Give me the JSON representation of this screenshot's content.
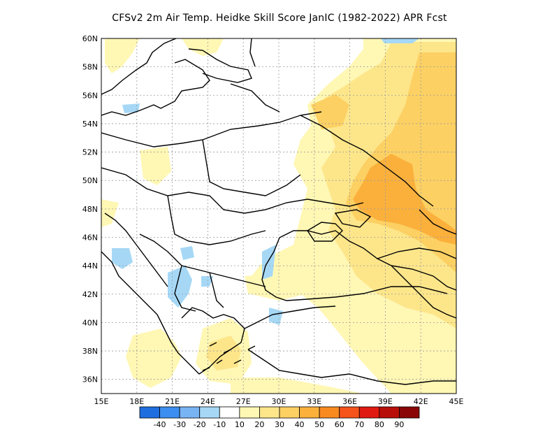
{
  "title": "CFSv2  2m Air Temp. Heidke Skill Score JanIC (1982-2022) APR Fcst",
  "map": {
    "lon_range": [
      15,
      45
    ],
    "lat_range": [
      35,
      60
    ],
    "grid": true,
    "lat_ticks": [
      "36N",
      "38N",
      "40N",
      "42N",
      "44N",
      "46N",
      "48N",
      "50N",
      "52N",
      "54N",
      "56N",
      "58N",
      "60N"
    ],
    "lon_ticks": [
      "15E",
      "18E",
      "21E",
      "24E",
      "27E",
      "30E",
      "33E",
      "36E",
      "39E",
      "42E",
      "45E"
    ]
  },
  "colorbar": {
    "labels": [
      "-40",
      "-30",
      "-20",
      "-10",
      "10",
      "20",
      "30",
      "40",
      "50",
      "60",
      "70",
      "80",
      "90"
    ],
    "colors": [
      "#1e6ee0",
      "#3c8ef0",
      "#78b4f4",
      "#a6d8f6",
      "#ffffff",
      "#fff7b4",
      "#fde68a",
      "#fcd063",
      "#fbb03c",
      "#f98a20",
      "#f5521c",
      "#e01a10",
      "#b80e0a",
      "#8a0606"
    ]
  }
}
